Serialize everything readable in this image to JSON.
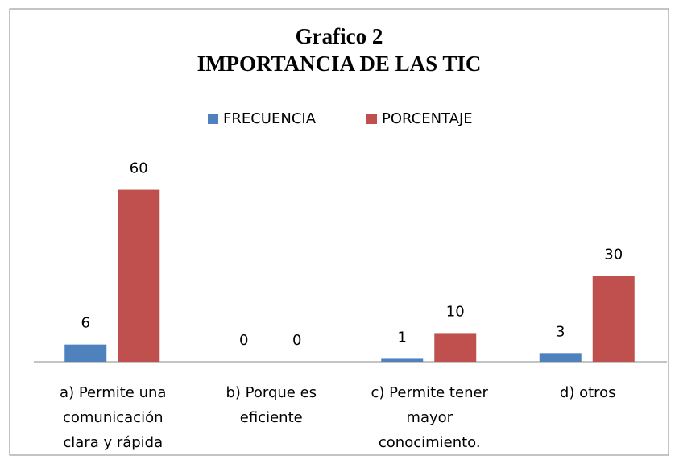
{
  "chart_data": {
    "type": "bar",
    "title": [
      "Grafico 2",
      "IMPORTANCIA DE LAS TIC"
    ],
    "categories": [
      [
        "a) Permite una",
        "comunicación",
        "clara y rápida"
      ],
      [
        "b) Porque es",
        "eficiente"
      ],
      [
        "c) Permite tener",
        "mayor",
        "conocimiento."
      ],
      [
        "d) otros"
      ]
    ],
    "series": [
      {
        "name": "FRECUENCIA",
        "color": "#4f81bd",
        "values": [
          6,
          0,
          1,
          3
        ]
      },
      {
        "name": "PORCENTAJE",
        "color": "#c0504d",
        "values": [
          60,
          0,
          10,
          30
        ]
      }
    ],
    "ylim": [
      0,
      70
    ],
    "legend": "top",
    "grid": false
  }
}
